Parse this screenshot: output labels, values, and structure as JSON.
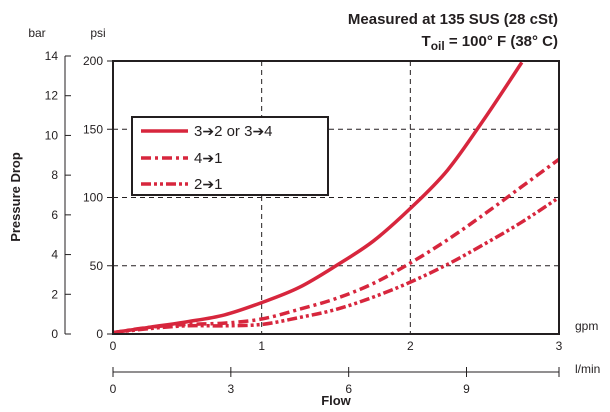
{
  "chart_data": {
    "type": "line",
    "title_line1": "Measured at 135 SUS  (28 cSt)",
    "title_line2_prefix": "T",
    "title_line2_sub": "oil",
    "title_line2_rest": " = 100° F  (38° C)",
    "ylabel": "Pressure Drop",
    "xlabel": "Flow",
    "y_unit_bar": "bar",
    "y_unit_psi": "psi",
    "x_unit_gpm": "gpm",
    "x_unit_lmin": "l/min",
    "gpm_ticks": [
      "0",
      "1",
      "2",
      "3"
    ],
    "lmin_ticks": [
      "0",
      "3",
      "6",
      "9"
    ],
    "psi_ticks": [
      "0",
      "50",
      "100",
      "150",
      "200"
    ],
    "bar_ticks": [
      "0",
      "2",
      "4",
      "6",
      "8",
      "10",
      "12",
      "14"
    ],
    "xlim_gpm": [
      0,
      3
    ],
    "ylim_psi": [
      0,
      200
    ],
    "color": "#d7263d",
    "legend": {
      "s1_from": "3",
      "s1_mid": "2 or 3",
      "s1_to": "4",
      "s2_from": "4",
      "s2_to": "1",
      "s3_from": "2",
      "s3_to": "1"
    },
    "series": [
      {
        "dash": "solid",
        "x": [
          0,
          0.25,
          0.5,
          0.75,
          1.0,
          1.25,
          1.5,
          1.75,
          2.0,
          2.25,
          2.5,
          2.75
        ],
        "y": [
          1,
          5,
          9,
          14,
          23,
          34,
          50,
          68,
          92,
          120,
          158,
          199
        ]
      },
      {
        "dash": "dash-dot",
        "x": [
          0,
          0.25,
          0.5,
          0.75,
          1.0,
          1.25,
          1.5,
          1.75,
          2.0,
          2.25,
          2.5,
          2.75,
          3.0
        ],
        "y": [
          1,
          5,
          7,
          8,
          11,
          18,
          26,
          37,
          52,
          69,
          88,
          108,
          128
        ]
      },
      {
        "dash": "dash-dot-dot",
        "x": [
          0,
          0.25,
          0.5,
          0.75,
          1.0,
          1.25,
          1.5,
          1.75,
          2.0,
          2.25,
          2.5,
          2.75,
          3.0
        ],
        "y": [
          1,
          4,
          6,
          6,
          7,
          12,
          18,
          27,
          38,
          51,
          66,
          82,
          100
        ]
      }
    ]
  }
}
